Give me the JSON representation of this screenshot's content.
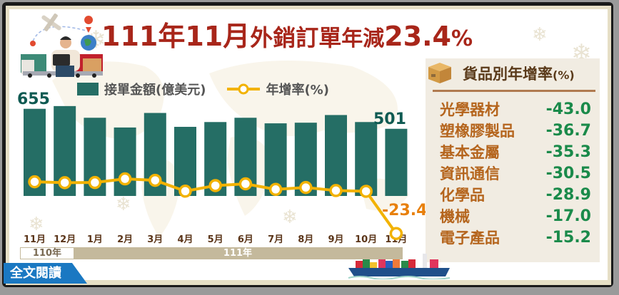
{
  "title": {
    "part1": "111年11月",
    "part2": "外銷訂單",
    "part3": "年減",
    "part4": "23.4",
    "part5": "%"
  },
  "legend": {
    "bar_label": "接單金額(億美元)",
    "line_label": "年增率(%)"
  },
  "annotations": {
    "first_bar_value": "655",
    "last_bar_value": "501",
    "last_rate_value": "-23.4"
  },
  "x_axis": {
    "months": [
      "11月",
      "12月",
      "1月",
      "2月",
      "3月",
      "4月",
      "5月",
      "6月",
      "7月",
      "8月",
      "9月",
      "10月",
      "11月"
    ],
    "year_110": "110年",
    "year_111": "111年"
  },
  "panel": {
    "title": "貨品別年增率",
    "title_unit": "(%)",
    "items": [
      {
        "name": "光學器材",
        "value": "-43.0"
      },
      {
        "name": "塑橡膠製品",
        "value": "-36.7"
      },
      {
        "name": "基本金屬",
        "value": "-35.3"
      },
      {
        "name": "資訊通信",
        "value": "-30.5"
      },
      {
        "name": "化學品",
        "value": "-28.9"
      },
      {
        "name": "機械",
        "value": "-17.0"
      },
      {
        "name": "電子產品",
        "value": "-15.2"
      }
    ]
  },
  "read_more": "全文閱讀",
  "colors": {
    "title": "#a8261a",
    "bar": "#256e65",
    "line": "#f2b200",
    "rate_label": "#e8800c",
    "panel_name": "#b5651d",
    "panel_value": "#1a8a4a",
    "read_more_bg": "#1a78c2"
  },
  "chart_data": [
    {
      "type": "bar+line",
      "title": "111年11月外銷訂單年減23.4%",
      "categories": [
        "110年11月",
        "110年12月",
        "111年1月",
        "111年2月",
        "111年3月",
        "111年4月",
        "111年5月",
        "111年6月",
        "111年7月",
        "111年8月",
        "111年9月",
        "111年10月",
        "111年11月"
      ],
      "series": [
        {
          "name": "接單金額(億美元)",
          "type": "bar",
          "values": [
            655,
            676,
            586,
            511,
            623,
            516,
            553,
            586,
            543,
            548,
            607,
            553,
            501
          ]
        },
        {
          "name": "年增率(%)",
          "type": "line",
          "values": [
            12.0,
            11.4,
            11.5,
            14.0,
            13.0,
            5.6,
            9.4,
            10.6,
            6.8,
            8.1,
            6.0,
            5.5,
            -23.4
          ]
        }
      ],
      "data_labels": {
        "bar_first": 655,
        "bar_last": 501,
        "line_last": -23.4
      },
      "xlabel": "",
      "ylabel": "",
      "grid": false,
      "legend_position": "top"
    },
    {
      "type": "table",
      "title": "貨品別年增率(%)",
      "categories": [
        "光學器材",
        "塑橡膠製品",
        "基本金屬",
        "資訊通信",
        "化學品",
        "機械",
        "電子產品"
      ],
      "values": [
        -43.0,
        -36.7,
        -35.3,
        -30.5,
        -28.9,
        -17.0,
        -15.2
      ]
    }
  ]
}
